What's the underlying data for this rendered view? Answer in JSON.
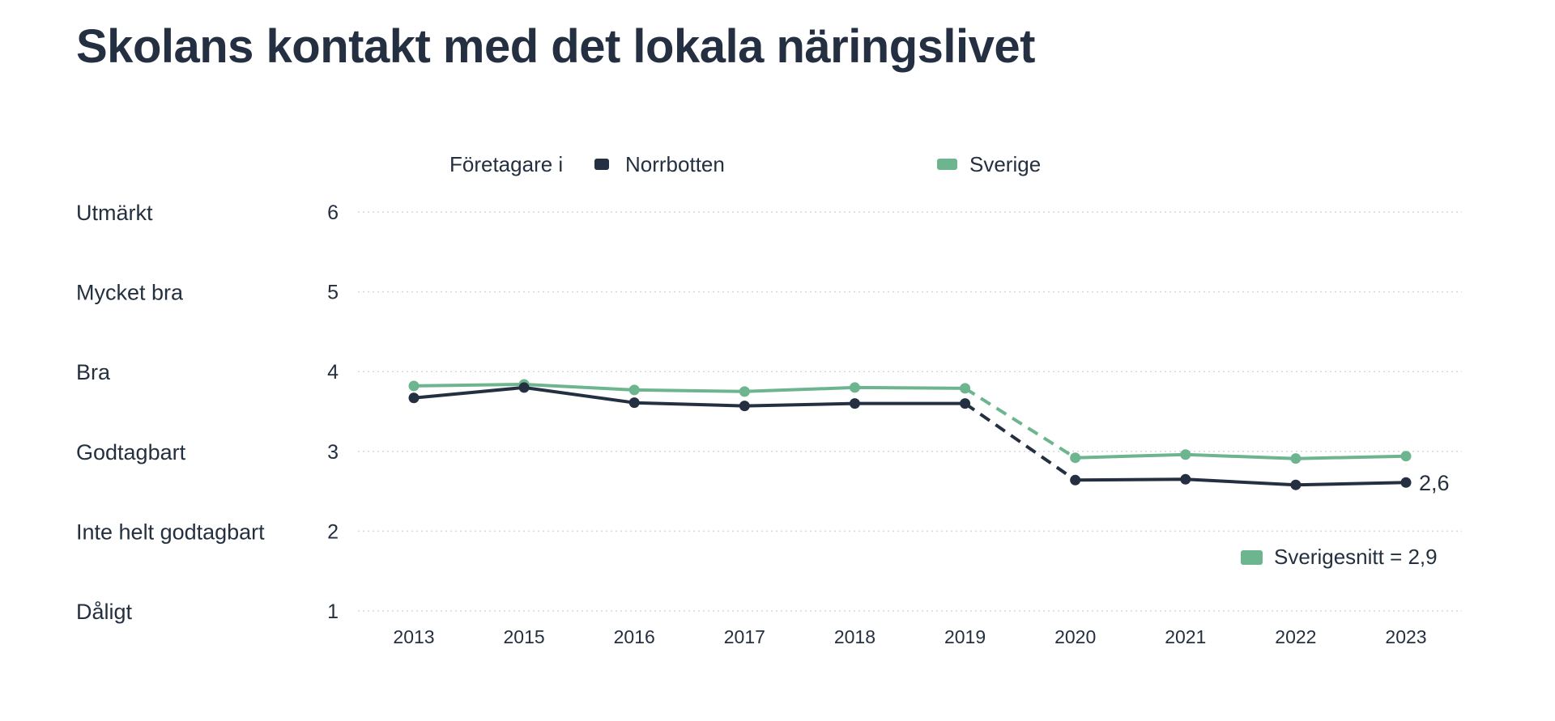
{
  "chart_data": {
    "type": "line",
    "title": "Skolans kontakt med det lokala näringslivet",
    "x": [
      "2013",
      "2015",
      "2016",
      "2017",
      "2018",
      "2019",
      "2020",
      "2021",
      "2022",
      "2023"
    ],
    "ylim": [
      1,
      6
    ],
    "yticks": [
      1,
      2,
      3,
      4,
      5,
      6
    ],
    "ycategories": [
      {
        "value": 6,
        "label": "Utmärkt"
      },
      {
        "value": 5,
        "label": "Mycket bra"
      },
      {
        "value": 4,
        "label": "Bra"
      },
      {
        "value": 3,
        "label": "Godtagbart"
      },
      {
        "value": 2,
        "label": "Inte helt godtagbart"
      },
      {
        "value": 1,
        "label": "Dåligt"
      }
    ],
    "legend": {
      "prefix": "Företagare i",
      "position": "top-center"
    },
    "series": [
      {
        "name": "Sverige",
        "color": "#6db58f",
        "values": [
          3.82,
          3.84,
          3.77,
          3.75,
          3.8,
          3.79,
          2.92,
          2.96,
          2.91,
          2.94
        ]
      },
      {
        "name": "Norrbotten",
        "color": "#243041",
        "values": [
          3.67,
          3.8,
          3.61,
          3.57,
          3.6,
          3.6,
          2.64,
          2.65,
          2.58,
          2.61
        ]
      }
    ],
    "dashed_segment": {
      "from": "2019",
      "to": "2020"
    },
    "end_label": "2,6",
    "average_label": "Sverigesnitt = 2,9",
    "grid": true
  }
}
